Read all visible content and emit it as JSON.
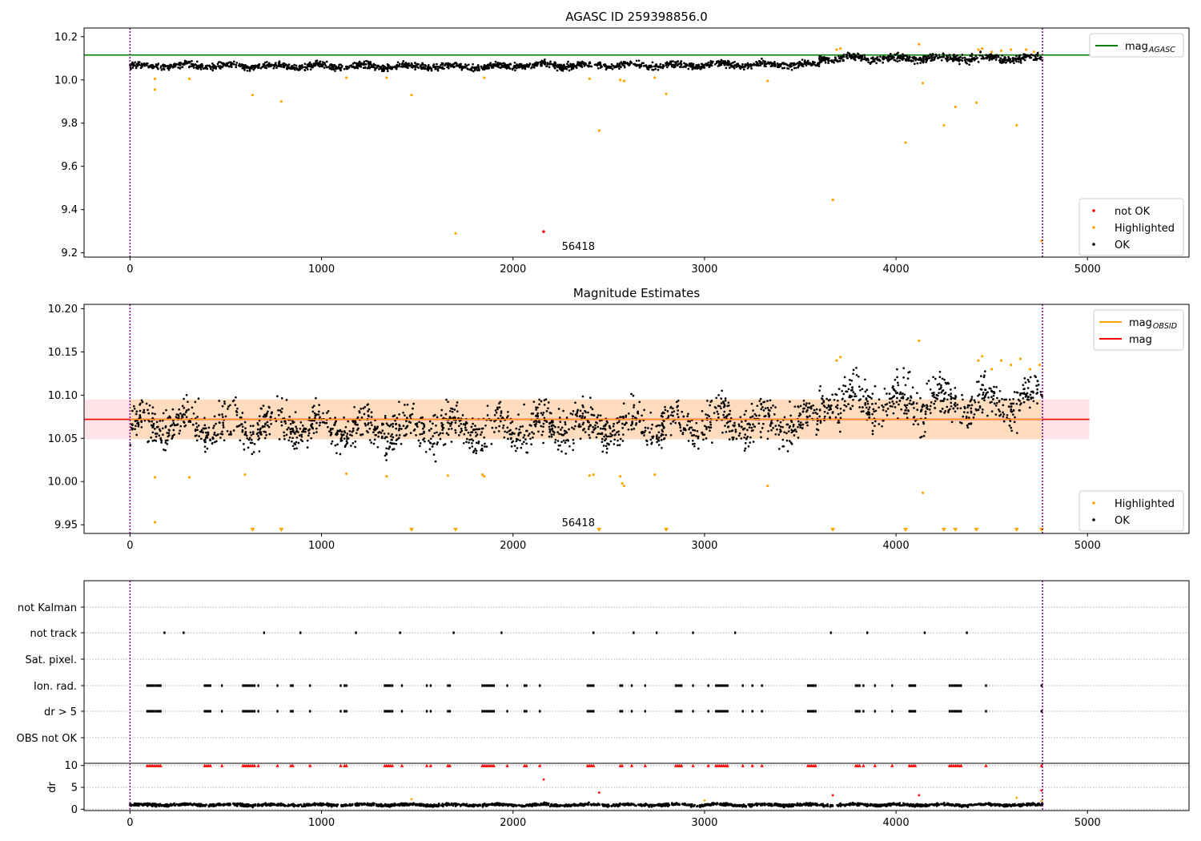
{
  "colors": {
    "ok": "#000000",
    "highlighted": "#ffa500",
    "not_ok": "#ff0000",
    "agasc_line": "#008000",
    "mag_line": "#ff0000",
    "obsid_line": "#ffa500",
    "band_outer": "#ffc0cb",
    "band_inner": "#ffdab9",
    "vline": "#800080",
    "grid": "#b0b0b0"
  },
  "chart_data": [
    {
      "type": "scatter",
      "title": "AGASC ID 259398856.0",
      "xlabel": "",
      "ylabel": "",
      "xlim": [
        -240,
        5530
      ],
      "ylim": [
        9.18,
        10.24
      ],
      "xticks": [
        0,
        1000,
        2000,
        3000,
        4000,
        5000
      ],
      "yticks": [
        9.2,
        9.4,
        9.6,
        9.8,
        10.0,
        10.2
      ],
      "ytick_labels": [
        "9.2",
        "9.4",
        "9.6",
        "9.8",
        "10.0",
        "10.2"
      ],
      "vlines": [
        0,
        4765
      ],
      "hline": {
        "y": 10.115,
        "x_range": [
          -240,
          5010
        ]
      },
      "obsid_label": {
        "text": "56418",
        "x": 2380
      },
      "legend_top": {
        "placement": "upper right",
        "entries": [
          {
            "label": "mag",
            "sub": "AGASC",
            "kind": "line",
            "color": "#008000"
          }
        ]
      },
      "legend_bottom": {
        "placement": "lower right",
        "entries": [
          {
            "label": "not OK",
            "kind": "dot",
            "color": "#ff0000"
          },
          {
            "label": "Highlighted",
            "kind": "dot",
            "color": "#ffa500"
          },
          {
            "label": "OK",
            "kind": "dot",
            "color": "#000000"
          }
        ]
      },
      "series": [
        {
          "name": "OK",
          "color": "#000000",
          "kind": "band",
          "x_range": [
            0,
            4765
          ],
          "segments": [
            {
              "x0": 0,
              "x1": 1000,
              "mean": 10.065,
              "spread": 0.03
            },
            {
              "x0": 1000,
              "x1": 2000,
              "mean": 10.062,
              "spread": 0.03
            },
            {
              "x0": 2000,
              "x1": 3000,
              "mean": 10.068,
              "spread": 0.03
            },
            {
              "x0": 3000,
              "x1": 3600,
              "mean": 10.07,
              "spread": 0.03
            },
            {
              "x0": 3600,
              "x1": 4765,
              "mean": 10.1,
              "spread": 0.035
            }
          ]
        },
        {
          "name": "Highlighted",
          "color": "#ffa500",
          "kind": "points",
          "points": [
            [
              130,
              10.005
            ],
            [
              130,
              9.955
            ],
            [
              310,
              10.005
            ],
            [
              640,
              9.93
            ],
            [
              790,
              9.9
            ],
            [
              1130,
              10.01
            ],
            [
              1340,
              10.01
            ],
            [
              1470,
              9.93
            ],
            [
              1700,
              9.29
            ],
            [
              1850,
              10.01
            ],
            [
              2400,
              10.005
            ],
            [
              2450,
              9.765
            ],
            [
              2560,
              10.0
            ],
            [
              2580,
              9.995
            ],
            [
              2740,
              10.01
            ],
            [
              2800,
              9.935
            ],
            [
              3330,
              9.995
            ],
            [
              3670,
              9.445
            ],
            [
              3690,
              10.14
            ],
            [
              3710,
              10.145
            ],
            [
              4050,
              9.71
            ],
            [
              4120,
              10.165
            ],
            [
              4140,
              9.985
            ],
            [
              4250,
              9.79
            ],
            [
              4310,
              9.875
            ],
            [
              4420,
              9.895
            ],
            [
              4430,
              10.14
            ],
            [
              4450,
              10.145
            ],
            [
              4500,
              10.13
            ],
            [
              4550,
              10.135
            ],
            [
              4600,
              10.14
            ],
            [
              4630,
              9.79
            ],
            [
              4680,
              10.14
            ],
            [
              4720,
              10.13
            ],
            [
              4760,
              9.255
            ]
          ]
        },
        {
          "name": "not OK",
          "color": "#ff0000",
          "kind": "points",
          "points": [
            [
              2160,
              9.298
            ]
          ]
        }
      ]
    },
    {
      "type": "scatter",
      "title": "Magnitude Estimates",
      "xlabel": "",
      "ylabel": "",
      "xlim": [
        -240,
        5530
      ],
      "ylim": [
        9.94,
        10.205
      ],
      "xticks": [
        0,
        1000,
        2000,
        3000,
        4000,
        5000
      ],
      "yticks": [
        9.95,
        10.0,
        10.05,
        10.1,
        10.15,
        10.2
      ],
      "ytick_labels": [
        "9.95",
        "10.00",
        "10.05",
        "10.10",
        "10.15",
        "10.20"
      ],
      "vlines": [
        0,
        4765
      ],
      "mag": 10.072,
      "band_outer": [
        10.049,
        10.095
      ],
      "band_outer_x": [
        -240,
        5010
      ],
      "band_inner_x": [
        0,
        4765
      ],
      "obsid_label": {
        "text": "56418",
        "x": 2380
      },
      "legend_top": {
        "placement": "upper right",
        "entries": [
          {
            "label": "mag",
            "sub": "OBSID",
            "kind": "line",
            "color": "#ffa500"
          },
          {
            "label": "mag",
            "kind": "line",
            "color": "#ff0000"
          }
        ]
      },
      "legend_bottom": {
        "placement": "lower right",
        "entries": [
          {
            "label": "Highlighted",
            "kind": "dot",
            "color": "#ffa500"
          },
          {
            "label": "OK",
            "kind": "dot",
            "color": "#000000"
          }
        ]
      },
      "series": [
        {
          "name": "OK",
          "color": "#000000",
          "kind": "band",
          "x_range": [
            0,
            4765
          ],
          "segments": [
            {
              "x0": 0,
              "x1": 1000,
              "mean": 10.065,
              "spread": 0.045
            },
            {
              "x0": 1000,
              "x1": 2000,
              "mean": 10.062,
              "spread": 0.045
            },
            {
              "x0": 2000,
              "x1": 3000,
              "mean": 10.065,
              "spread": 0.045
            },
            {
              "x0": 3000,
              "x1": 3600,
              "mean": 10.068,
              "spread": 0.045
            },
            {
              "x0": 3600,
              "x1": 4765,
              "mean": 10.092,
              "spread": 0.05
            }
          ]
        },
        {
          "name": "Highlighted",
          "color": "#ffa500",
          "kind": "points",
          "points": [
            [
              130,
              10.005
            ],
            [
              130,
              9.953
            ],
            [
              310,
              10.005
            ],
            [
              600,
              10.008
            ],
            [
              1130,
              10.009
            ],
            [
              1340,
              10.006
            ],
            [
              1660,
              10.007
            ],
            [
              1840,
              10.008
            ],
            [
              1850,
              10.006
            ],
            [
              2400,
              10.007
            ],
            [
              2420,
              10.008
            ],
            [
              2560,
              10.006
            ],
            [
              2570,
              9.998
            ],
            [
              2580,
              9.995
            ],
            [
              2740,
              10.008
            ],
            [
              3330,
              9.995
            ],
            [
              3690,
              10.14
            ],
            [
              3710,
              10.144
            ],
            [
              4120,
              10.163
            ],
            [
              4140,
              9.987
            ],
            [
              4430,
              10.14
            ],
            [
              4450,
              10.145
            ],
            [
              4500,
              10.13
            ],
            [
              4550,
              10.14
            ],
            [
              4600,
              10.135
            ],
            [
              4650,
              10.142
            ],
            [
              4700,
              10.13
            ],
            [
              4750,
              10.135
            ]
          ]
        },
        {
          "name": "Highlighted (off-scale)",
          "color": "#ffa500",
          "kind": "markers",
          "x": [
            640,
            790,
            1470,
            1700,
            2450,
            2800,
            3670,
            4050,
            4250,
            4310,
            4420,
            4630,
            4760
          ]
        }
      ]
    },
    {
      "type": "scatter",
      "title": "",
      "xlabel": "",
      "ylabel": "",
      "xlim": [
        -240,
        5530
      ],
      "xticks": [
        0,
        1000,
        2000,
        3000,
        4000,
        5000
      ],
      "vlines": [
        0,
        4765
      ],
      "flags": [
        "not Kalman",
        "not track",
        "Sat. pixel.",
        "Ion. rad.",
        "dr > 5",
        "OBS not OK"
      ],
      "flag_points": {
        "not Kalman": [],
        "not track": [
          180,
          280,
          700,
          890,
          1180,
          1410,
          1690,
          1940,
          2420,
          2630,
          2750,
          2940,
          3160,
          3660,
          3850,
          4150,
          4370
        ],
        "Sat. pixel.": [],
        "Ion. rad.": [
          90,
          100,
          110,
          120,
          130,
          140,
          150,
          160,
          390,
          400,
          410,
          420,
          480,
          590,
          600,
          610,
          620,
          630,
          640,
          650,
          670,
          770,
          840,
          850,
          940,
          1100,
          1120,
          1130,
          1330,
          1340,
          1350,
          1360,
          1370,
          1420,
          1550,
          1570,
          1660,
          1670,
          1840,
          1850,
          1860,
          1870,
          1880,
          1890,
          1900,
          1970,
          2060,
          2070,
          2140,
          2390,
          2400,
          2410,
          2420,
          2560,
          2570,
          2620,
          2690,
          2850,
          2860,
          2870,
          2880,
          2940,
          3020,
          3060,
          3070,
          3080,
          3090,
          3100,
          3110,
          3120,
          3200,
          3250,
          3300,
          3540,
          3550,
          3560,
          3570,
          3580,
          3790,
          3800,
          3810,
          3830,
          3890,
          3980,
          4070,
          4080,
          4090,
          4100,
          4280,
          4290,
          4300,
          4310,
          4320,
          4330,
          4340,
          4470,
          4760
        ],
        "dr > 5": [
          90,
          100,
          110,
          120,
          130,
          140,
          150,
          160,
          390,
          400,
          410,
          420,
          480,
          590,
          600,
          610,
          620,
          630,
          640,
          650,
          670,
          770,
          840,
          850,
          940,
          1100,
          1120,
          1130,
          1330,
          1340,
          1350,
          1360,
          1370,
          1420,
          1550,
          1570,
          1660,
          1670,
          1840,
          1850,
          1860,
          1870,
          1880,
          1890,
          1900,
          1970,
          2060,
          2070,
          2140,
          2390,
          2400,
          2410,
          2420,
          2560,
          2570,
          2620,
          2690,
          2850,
          2860,
          2870,
          2880,
          2940,
          3020,
          3060,
          3070,
          3080,
          3090,
          3100,
          3110,
          3120,
          3200,
          3250,
          3300,
          3540,
          3550,
          3560,
          3570,
          3580,
          3790,
          3800,
          3810,
          3830,
          3890,
          3980,
          4070,
          4080,
          4090,
          4100,
          4280,
          4290,
          4300,
          4310,
          4320,
          4330,
          4340,
          4470,
          4760
        ],
        "OBS not OK": []
      }
    },
    {
      "type": "scatter",
      "title": "",
      "xlabel": "",
      "ylabel": "dr",
      "xlim": [
        -240,
        5530
      ],
      "ylim": [
        -0.3,
        10.5
      ],
      "xticks": [
        0,
        1000,
        2000,
        3000,
        4000,
        5000
      ],
      "yticks": [
        0,
        5,
        10
      ],
      "vlines": [
        0,
        4765
      ],
      "series": [
        {
          "name": "OK",
          "color": "#000000",
          "kind": "band",
          "x_range": [
            0,
            4765
          ],
          "segments": [
            {
              "x0": 0,
              "x1": 4765,
              "mean": 1.0,
              "spread": 0.6
            }
          ]
        },
        {
          "name": "clipped",
          "color": "#ff0000",
          "kind": "clipped",
          "y": 10,
          "x": [
            90,
            100,
            110,
            120,
            130,
            140,
            150,
            160,
            390,
            400,
            410,
            420,
            480,
            590,
            600,
            610,
            620,
            630,
            640,
            650,
            670,
            770,
            840,
            850,
            940,
            1100,
            1120,
            1130,
            1330,
            1340,
            1350,
            1360,
            1370,
            1420,
            1550,
            1570,
            1660,
            1670,
            1840,
            1850,
            1860,
            1870,
            1880,
            1890,
            1900,
            1970,
            2060,
            2070,
            2140,
            2390,
            2400,
            2410,
            2420,
            2560,
            2570,
            2620,
            2690,
            2850,
            2860,
            2870,
            2880,
            2940,
            3020,
            3060,
            3070,
            3080,
            3090,
            3100,
            3110,
            3120,
            3200,
            3250,
            3300,
            3540,
            3550,
            3560,
            3570,
            3580,
            3790,
            3800,
            3810,
            3830,
            3890,
            3980,
            4070,
            4080,
            4090,
            4100,
            4280,
            4290,
            4300,
            4310,
            4320,
            4330,
            4340,
            4470,
            4760
          ]
        },
        {
          "name": "not OK",
          "color": "#ff0000",
          "kind": "points",
          "points": [
            [
              2160,
              6.8
            ],
            [
              2450,
              3.8
            ],
            [
              3670,
              3.2
            ],
            [
              4120,
              3.2
            ],
            [
              4760,
              4.3
            ]
          ]
        },
        {
          "name": "Highlighted",
          "color": "#ffa500",
          "kind": "points",
          "points": [
            [
              1470,
              2.3
            ],
            [
              3000,
              2.0
            ],
            [
              4630,
              2.6
            ],
            [
              4760,
              1.9
            ]
          ]
        }
      ]
    }
  ]
}
